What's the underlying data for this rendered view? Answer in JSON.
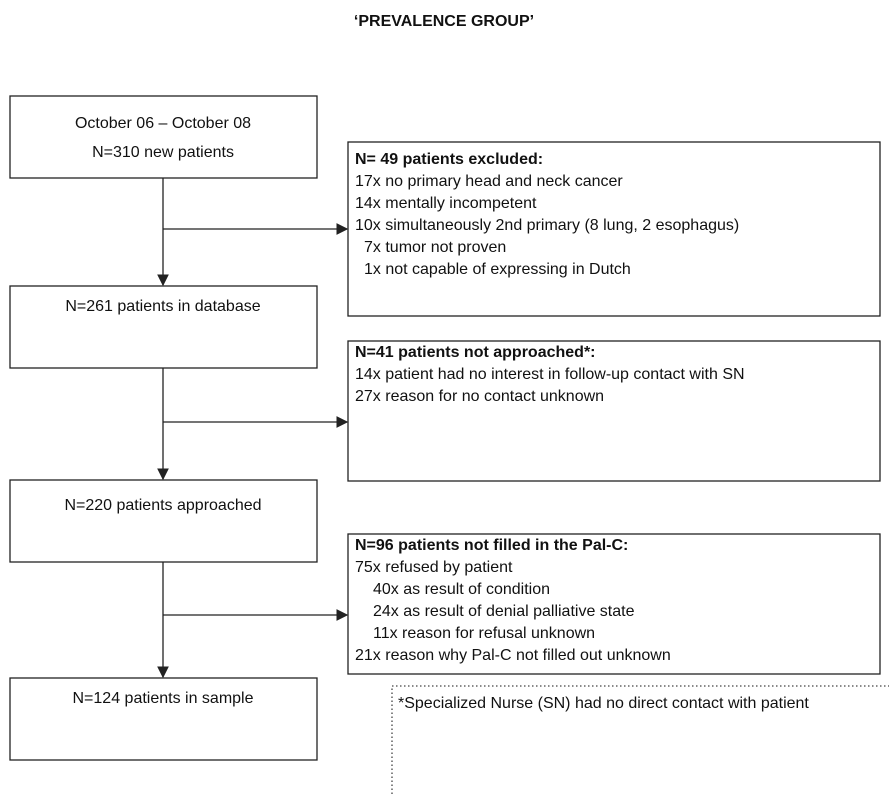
{
  "title": "‘PREVALENCE GROUP’",
  "boxes": [
    {
      "lines": [
        "October 06 – October 08",
        "N=310 new patients"
      ]
    },
    {
      "lines": [
        "N=261 patients in database"
      ]
    },
    {
      "lines": [
        "N=220 patients approached"
      ]
    },
    {
      "lines": [
        "N=124 patients in sample"
      ]
    }
  ],
  "side_boxes": [
    {
      "heading": "N= 49 patients excluded:",
      "lines": [
        "17x no primary head and neck cancer",
        "14x mentally incompetent",
        "10x simultaneously 2nd primary (8 lung, 2 esophagus)",
        "7x tumor not proven",
        "1x not capable of expressing in Dutch"
      ]
    },
    {
      "heading": "N=41 patients not approached*:",
      "lines": [
        "14x patient had no interest in follow-up contact with SN",
        "27x reason for no contact unknown"
      ]
    },
    {
      "heading": "N=96 patients not filled in the Pal-C:",
      "lines": [
        "75x refused by patient",
        "40x as result of condition",
        "24x as result of denial palliative state",
        "11x reason for refusal unknown",
        "21x reason why Pal-C not filled out unknown"
      ]
    }
  ],
  "footnote": "*Specialized Nurse (SN) had no direct contact with patient"
}
